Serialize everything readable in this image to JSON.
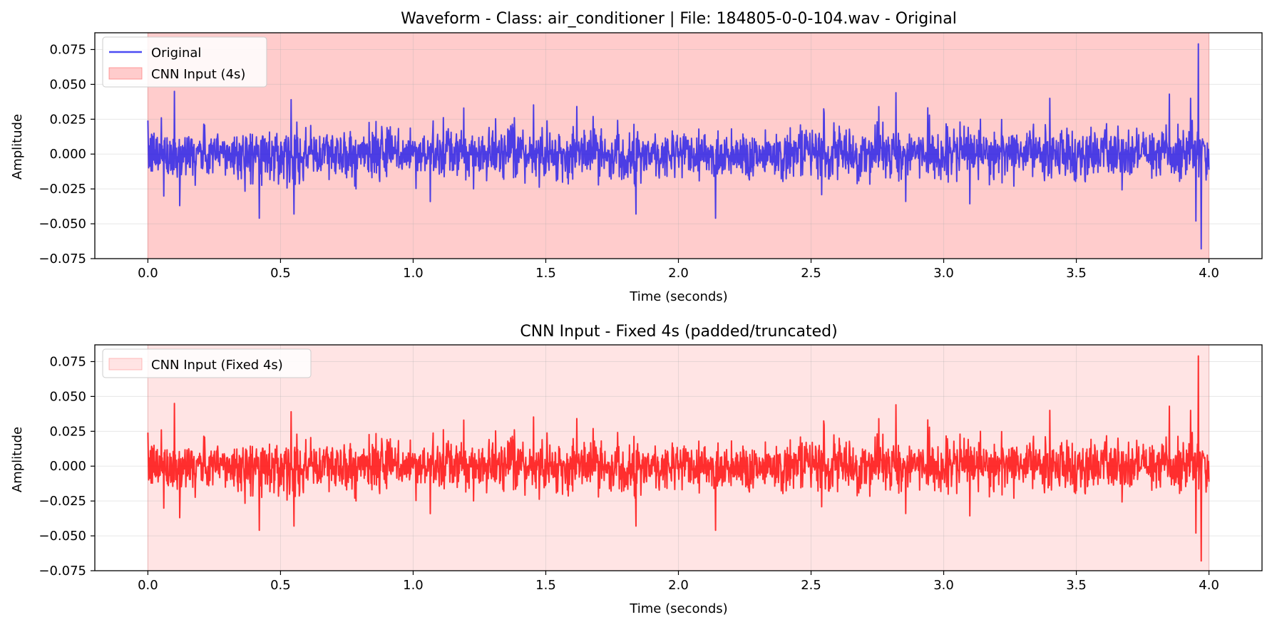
{
  "chart_data": [
    {
      "type": "line",
      "title": "Waveform - Class: air_conditioner | File: 184805-0-0-104.wav - Original",
      "xlabel": "Time (seconds)",
      "ylabel": "Amplitude",
      "xlim": [
        -0.2,
        4.2
      ],
      "ylim": [
        -0.075,
        0.087
      ],
      "x_ticks": [
        0.0,
        0.5,
        1.0,
        1.5,
        2.0,
        2.5,
        3.0,
        3.5,
        4.0
      ],
      "x_tick_labels": [
        "0.0",
        "0.5",
        "1.0",
        "1.5",
        "2.0",
        "2.5",
        "3.0",
        "3.5",
        "4.0"
      ],
      "y_ticks": [
        -0.075,
        -0.05,
        -0.025,
        0.0,
        0.025,
        0.05,
        0.075
      ],
      "y_tick_labels": [
        "−0.075",
        "−0.050",
        "−0.025",
        "0.000",
        "0.025",
        "0.050",
        "0.075"
      ],
      "grid": true,
      "legend_position": "top-left",
      "shaded_region": {
        "label": "CNN Input (4s)",
        "x_range": [
          0.0,
          4.0
        ],
        "color": "#ff9999",
        "opacity": 0.5
      },
      "series": [
        {
          "name": "Original",
          "color": "#0000ee",
          "opacity": 0.7,
          "x_range": [
            0.0,
            4.0
          ],
          "typical_amplitude": 0.014,
          "peaks": [
            {
              "x": 0.05,
              "y": 0.026
            },
            {
              "x": 0.1,
              "y": 0.045
            },
            {
              "x": 0.12,
              "y": -0.037
            },
            {
              "x": 0.42,
              "y": -0.046
            },
            {
              "x": 0.54,
              "y": 0.039
            },
            {
              "x": 0.55,
              "y": -0.043
            },
            {
              "x": 1.84,
              "y": -0.043
            },
            {
              "x": 2.14,
              "y": -0.046
            },
            {
              "x": 2.82,
              "y": 0.044
            },
            {
              "x": 3.4,
              "y": 0.04
            },
            {
              "x": 3.85,
              "y": 0.043
            },
            {
              "x": 3.93,
              "y": 0.04
            },
            {
              "x": 3.96,
              "y": 0.079
            },
            {
              "x": 3.97,
              "y": -0.068
            },
            {
              "x": 3.95,
              "y": -0.048
            }
          ]
        }
      ]
    },
    {
      "type": "line",
      "title": "CNN Input - Fixed 4s (padded/truncated)",
      "xlabel": "Time (seconds)",
      "ylabel": "Amplitude",
      "xlim": [
        -0.2,
        4.2
      ],
      "ylim": [
        -0.075,
        0.087
      ],
      "x_ticks": [
        0.0,
        0.5,
        1.0,
        1.5,
        2.0,
        2.5,
        3.0,
        3.5,
        4.0
      ],
      "x_tick_labels": [
        "0.0",
        "0.5",
        "1.0",
        "1.5",
        "2.0",
        "2.5",
        "3.0",
        "3.5",
        "4.0"
      ],
      "y_ticks": [
        -0.075,
        -0.05,
        -0.025,
        0.0,
        0.025,
        0.05,
        0.075
      ],
      "y_tick_labels": [
        "−0.075",
        "−0.050",
        "−0.025",
        "0.000",
        "0.025",
        "0.050",
        "0.075"
      ],
      "grid": true,
      "legend_position": "top-left",
      "shaded_region": {
        "label": "CNN Input (Fixed 4s)",
        "x_range": [
          0.0,
          4.0
        ],
        "color": "#ffb3b3",
        "opacity": 0.35
      },
      "series": [
        {
          "color": "#ff0000",
          "opacity": 0.8,
          "x_range": [
            0.0,
            4.0
          ],
          "typical_amplitude": 0.014,
          "peaks": [
            {
              "x": 0.05,
              "y": 0.026
            },
            {
              "x": 0.1,
              "y": 0.045
            },
            {
              "x": 0.12,
              "y": -0.037
            },
            {
              "x": 0.42,
              "y": -0.046
            },
            {
              "x": 0.54,
              "y": 0.039
            },
            {
              "x": 0.55,
              "y": -0.043
            },
            {
              "x": 1.84,
              "y": -0.043
            },
            {
              "x": 2.14,
              "y": -0.046
            },
            {
              "x": 2.82,
              "y": 0.044
            },
            {
              "x": 3.4,
              "y": 0.04
            },
            {
              "x": 3.85,
              "y": 0.043
            },
            {
              "x": 3.93,
              "y": 0.04
            },
            {
              "x": 3.96,
              "y": 0.079
            },
            {
              "x": 3.97,
              "y": -0.068
            },
            {
              "x": 3.95,
              "y": -0.048
            }
          ]
        }
      ]
    }
  ]
}
